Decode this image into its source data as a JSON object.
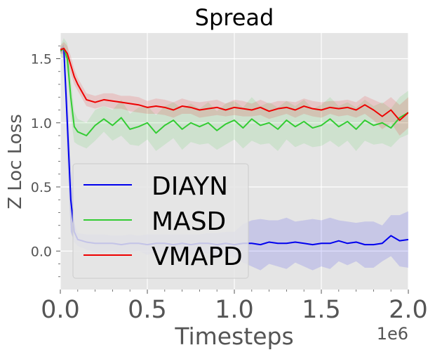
{
  "chart_data": {
    "type": "line",
    "title": "Spread",
    "xlabel": "Timesteps",
    "ylabel": "Z Loc Loss",
    "x_offset_label": "1e6",
    "xlim": [
      0,
      2.0
    ],
    "ylim": [
      -0.3,
      1.7
    ],
    "x_ticks": [
      0.0,
      0.5,
      1.0,
      1.5,
      2.0
    ],
    "x_tick_labels": [
      "0.0",
      "0.5",
      "1.0",
      "1.5",
      "2.0"
    ],
    "y_ticks": [
      0.0,
      0.5,
      1.0,
      1.5
    ],
    "y_tick_labels": [
      "0.0",
      "0.5",
      "1.0",
      "1.5"
    ],
    "grid": true,
    "background": "#e5e5e5",
    "legend_position": "lower-left",
    "x": [
      0.0,
      0.02,
      0.04,
      0.06,
      0.08,
      0.1,
      0.15,
      0.2,
      0.25,
      0.3,
      0.35,
      0.4,
      0.45,
      0.5,
      0.55,
      0.6,
      0.65,
      0.7,
      0.75,
      0.8,
      0.85,
      0.9,
      0.95,
      1.0,
      1.05,
      1.1,
      1.15,
      1.2,
      1.25,
      1.3,
      1.35,
      1.4,
      1.45,
      1.5,
      1.55,
      1.6,
      1.65,
      1.7,
      1.75,
      1.8,
      1.85,
      1.9,
      1.95,
      2.0
    ],
    "series": [
      {
        "name": "DIAYN",
        "color": "#0000ee",
        "values": [
          1.56,
          1.58,
          1.0,
          0.4,
          0.15,
          0.09,
          0.07,
          0.06,
          0.06,
          0.06,
          0.05,
          0.06,
          0.06,
          0.05,
          0.06,
          0.06,
          0.05,
          0.06,
          0.05,
          0.06,
          0.06,
          0.05,
          0.06,
          0.05,
          0.06,
          0.06,
          0.05,
          0.07,
          0.06,
          0.06,
          0.07,
          0.06,
          0.05,
          0.06,
          0.06,
          0.08,
          0.06,
          0.07,
          0.05,
          0.05,
          0.06,
          0.12,
          0.08,
          0.09
        ],
        "band": [
          0.02,
          0.03,
          0.25,
          0.25,
          0.08,
          0.05,
          0.06,
          0.07,
          0.07,
          0.06,
          0.07,
          0.07,
          0.06,
          0.08,
          0.07,
          0.07,
          0.08,
          0.07,
          0.08,
          0.07,
          0.08,
          0.09,
          0.09,
          0.1,
          0.15,
          0.18,
          0.2,
          0.17,
          0.18,
          0.2,
          0.16,
          0.18,
          0.2,
          0.18,
          0.2,
          0.16,
          0.17,
          0.15,
          0.18,
          0.18,
          0.14,
          0.16,
          0.2,
          0.22
        ]
      },
      {
        "name": "MASD",
        "color": "#33cc33",
        "values": [
          1.56,
          1.58,
          1.5,
          1.2,
          0.97,
          0.93,
          0.9,
          0.98,
          1.03,
          0.98,
          1.04,
          0.95,
          0.97,
          1.0,
          0.92,
          0.98,
          1.02,
          0.95,
          1.0,
          0.97,
          1.0,
          0.94,
          0.99,
          1.02,
          0.96,
          1.03,
          0.98,
          1.0,
          0.95,
          1.02,
          0.97,
          1.01,
          0.96,
          0.98,
          1.03,
          0.97,
          1.01,
          0.95,
          1.02,
          0.98,
          1.0,
          0.96,
          1.04,
          1.08
        ],
        "band": [
          0.04,
          0.08,
          0.12,
          0.15,
          0.12,
          0.1,
          0.1,
          0.12,
          0.1,
          0.12,
          0.14,
          0.12,
          0.15,
          0.13,
          0.14,
          0.15,
          0.14,
          0.16,
          0.15,
          0.14,
          0.16,
          0.15,
          0.16,
          0.15,
          0.16,
          0.17,
          0.15,
          0.16,
          0.17,
          0.15,
          0.16,
          0.17,
          0.15,
          0.16,
          0.17,
          0.16,
          0.15,
          0.17,
          0.16,
          0.15,
          0.16,
          0.15,
          0.16,
          0.17
        ]
      },
      {
        "name": "VMAPD",
        "color": "#ee0000",
        "values": [
          1.57,
          1.58,
          1.54,
          1.45,
          1.36,
          1.3,
          1.18,
          1.16,
          1.18,
          1.17,
          1.16,
          1.15,
          1.14,
          1.12,
          1.13,
          1.12,
          1.1,
          1.13,
          1.12,
          1.1,
          1.11,
          1.12,
          1.1,
          1.12,
          1.11,
          1.1,
          1.12,
          1.09,
          1.11,
          1.12,
          1.1,
          1.13,
          1.11,
          1.1,
          1.12,
          1.11,
          1.12,
          1.1,
          1.14,
          1.1,
          1.05,
          1.1,
          1.02,
          1.08
        ],
        "band": [
          0.03,
          0.05,
          0.06,
          0.07,
          0.06,
          0.05,
          0.05,
          0.05,
          0.05,
          0.06,
          0.05,
          0.06,
          0.06,
          0.05,
          0.06,
          0.06,
          0.06,
          0.06,
          0.05,
          0.06,
          0.06,
          0.06,
          0.05,
          0.06,
          0.06,
          0.05,
          0.06,
          0.06,
          0.06,
          0.05,
          0.06,
          0.06,
          0.06,
          0.06,
          0.05,
          0.06,
          0.06,
          0.06,
          0.07,
          0.08,
          0.1,
          0.1,
          0.12,
          0.12
        ]
      }
    ]
  }
}
